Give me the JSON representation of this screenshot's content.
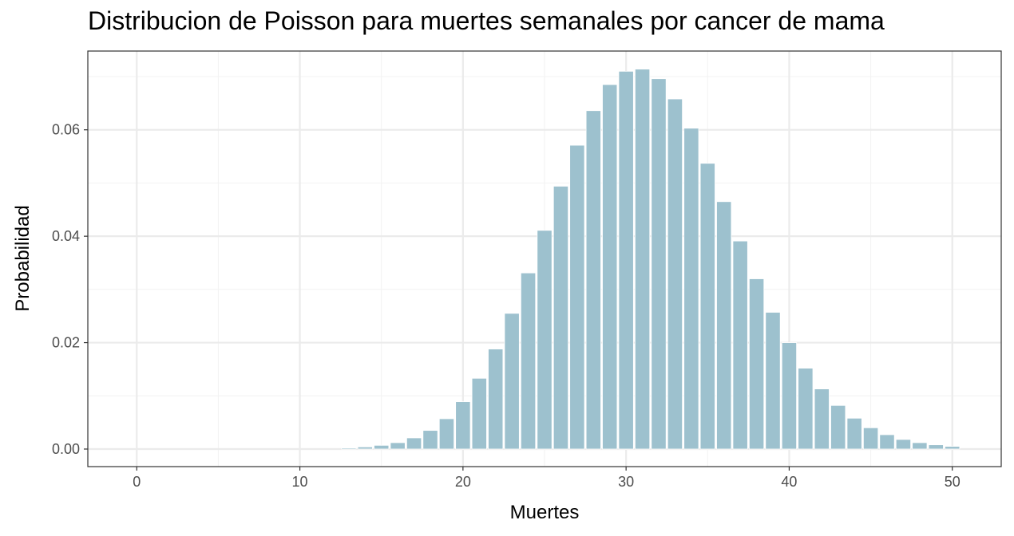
{
  "chart_data": {
    "type": "bar",
    "title": "Distribucion de Poisson para muertes semanales por cancer de mama",
    "xlabel": "Muertes",
    "ylabel": "Probabilidad",
    "x": [
      0,
      1,
      2,
      3,
      4,
      5,
      6,
      7,
      8,
      9,
      10,
      11,
      12,
      13,
      14,
      15,
      16,
      17,
      18,
      19,
      20,
      21,
      22,
      23,
      24,
      25,
      26,
      27,
      28,
      29,
      30,
      31,
      32,
      33,
      34,
      35,
      36,
      37,
      38,
      39,
      40,
      41,
      42,
      43,
      44,
      45,
      46,
      47,
      48,
      49,
      50
    ],
    "values": [
      0,
      0,
      0,
      0,
      0,
      0,
      0,
      0,
      0,
      0,
      0,
      0,
      0,
      0.0002,
      0.0004,
      0.0007,
      0.0012,
      0.0021,
      0.0035,
      0.0057,
      0.0089,
      0.0133,
      0.0188,
      0.0255,
      0.0331,
      0.0411,
      0.0494,
      0.0571,
      0.0636,
      0.0685,
      0.071,
      0.0714,
      0.0696,
      0.0658,
      0.0603,
      0.0537,
      0.0465,
      0.0391,
      0.032,
      0.0257,
      0.02,
      0.0152,
      0.0113,
      0.0082,
      0.0058,
      0.004,
      0.0027,
      0.0018,
      0.0012,
      0.0008,
      0.0005
    ],
    "xlim": [
      -3,
      53
    ],
    "ylim": [
      -0.0033,
      0.0748
    ],
    "x_ticks": [
      0,
      10,
      20,
      30,
      40,
      50
    ],
    "x_tick_labels": [
      "0",
      "10",
      "20",
      "30",
      "40",
      "50"
    ],
    "y_ticks": [
      0,
      0.02,
      0.04,
      0.06
    ],
    "y_tick_labels": [
      "0.00",
      "0.02",
      "0.04",
      "0.06"
    ],
    "grid": true,
    "colors": {
      "bar": "#9dc1ce",
      "bar_outline": "#ffffff",
      "grid_major": "#ebebeb",
      "grid_minor": "#f3f3f3",
      "panel_border": "#333333",
      "tick_text": "#4d4d4d"
    }
  }
}
